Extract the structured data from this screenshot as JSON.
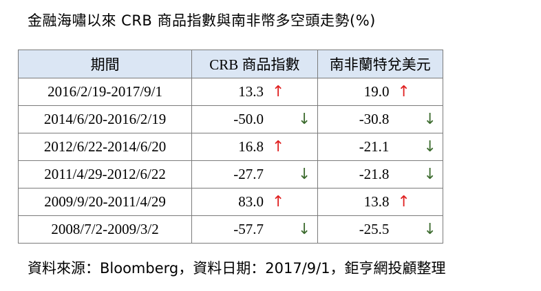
{
  "title": "金融海嘯以來 CRB 商品指數與南非幣多空頭走勢(%)",
  "table": {
    "headers": [
      "期間",
      "CRB 商品指數",
      "南非蘭特兌美元"
    ],
    "rows": [
      {
        "period": "2016/2/19-2017/9/1",
        "crb": "13.3",
        "crb_dir": "up",
        "zar": "19.0",
        "zar_dir": "up"
      },
      {
        "period": "2014/6/20-2016/2/19",
        "crb": "-50.0",
        "crb_dir": "down",
        "zar": "-30.8",
        "zar_dir": "down"
      },
      {
        "period": "2012/6/22-2014/6/20",
        "crb": "16.8",
        "crb_dir": "up",
        "zar": "-21.1",
        "zar_dir": "down"
      },
      {
        "period": "2011/4/29-2012/6/22",
        "crb": "-27.7",
        "crb_dir": "down",
        "zar": "-21.8",
        "zar_dir": "down"
      },
      {
        "period": "2009/9/20-2011/4/29",
        "crb": "83.0",
        "crb_dir": "up",
        "zar": "13.8",
        "zar_dir": "up"
      },
      {
        "period": "2008/7/2-2009/3/2",
        "crb": "-57.7",
        "crb_dir": "down",
        "zar": "-25.5",
        "zar_dir": "down"
      }
    ]
  },
  "arrows": {
    "up": "↑",
    "down": "↓",
    "up_color": "#e02020",
    "down_color": "#3c6b2e"
  },
  "footer": "資料來源：Bloomberg，資料日期：2017/9/1，鉅亨網投顧整理"
}
